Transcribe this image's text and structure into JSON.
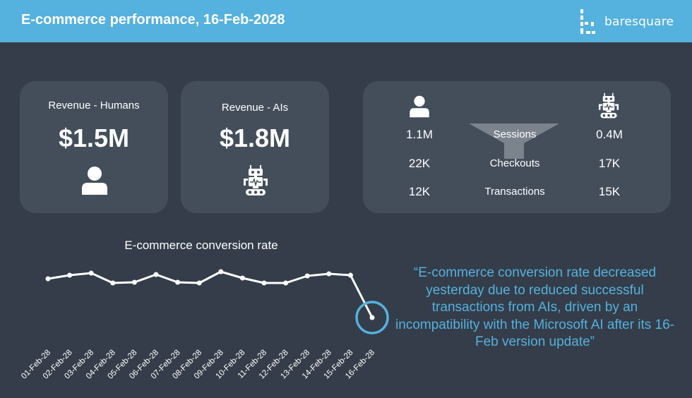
{
  "header": {
    "title": "E-commerce performance, 16-Feb-2028",
    "brand": "baresquare",
    "bg_color": "#55b1de"
  },
  "cards": {
    "humans": {
      "label": "Revenue - Humans",
      "value": "$1.5M",
      "icon": "person-icon"
    },
    "ais": {
      "label": "Revenue - AIs",
      "value": "$1.8M",
      "icon": "robot-icon"
    }
  },
  "funnel": {
    "human_icon": "person-icon",
    "ai_icon": "robot-icon",
    "stages": [
      {
        "label": "Sessions",
        "humans": "1.1M",
        "ais": "0.4M"
      },
      {
        "label": "Checkouts",
        "humans": "22K",
        "ais": "17K"
      },
      {
        "label": "Transactions",
        "humans": "12K",
        "ais": "15K"
      }
    ]
  },
  "chart_data": {
    "type": "line",
    "title": "E-commerce conversion rate",
    "x": [
      "01-Feb-28",
      "02-Feb-28",
      "03-Feb-28",
      "04-Feb-28",
      "05-Feb-28",
      "06-Feb-28",
      "07-Feb-28",
      "08-Feb-28",
      "09-Feb-28",
      "10-Feb-28",
      "11-Feb-28",
      "12-Feb-28",
      "13-Feb-28",
      "14-Feb-28",
      "15-Feb-28",
      "16-Feb-28"
    ],
    "values": [
      0.85,
      0.9,
      0.93,
      0.79,
      0.8,
      0.91,
      0.8,
      0.79,
      0.95,
      0.86,
      0.79,
      0.79,
      0.89,
      0.92,
      0.9,
      0.3
    ],
    "ylim": [
      0.2,
      1.0
    ],
    "grid": false,
    "line_color": "#ffffff",
    "highlight_color": "#55b1de",
    "highlight_index": 15
  },
  "insight": {
    "text": "“E-commerce conversion rate decreased yesterday due to reduced successful transactions from AIs, driven by an incompatibility with the Microsoft AI after its 16-Feb version update”",
    "color": "#55b1de"
  }
}
